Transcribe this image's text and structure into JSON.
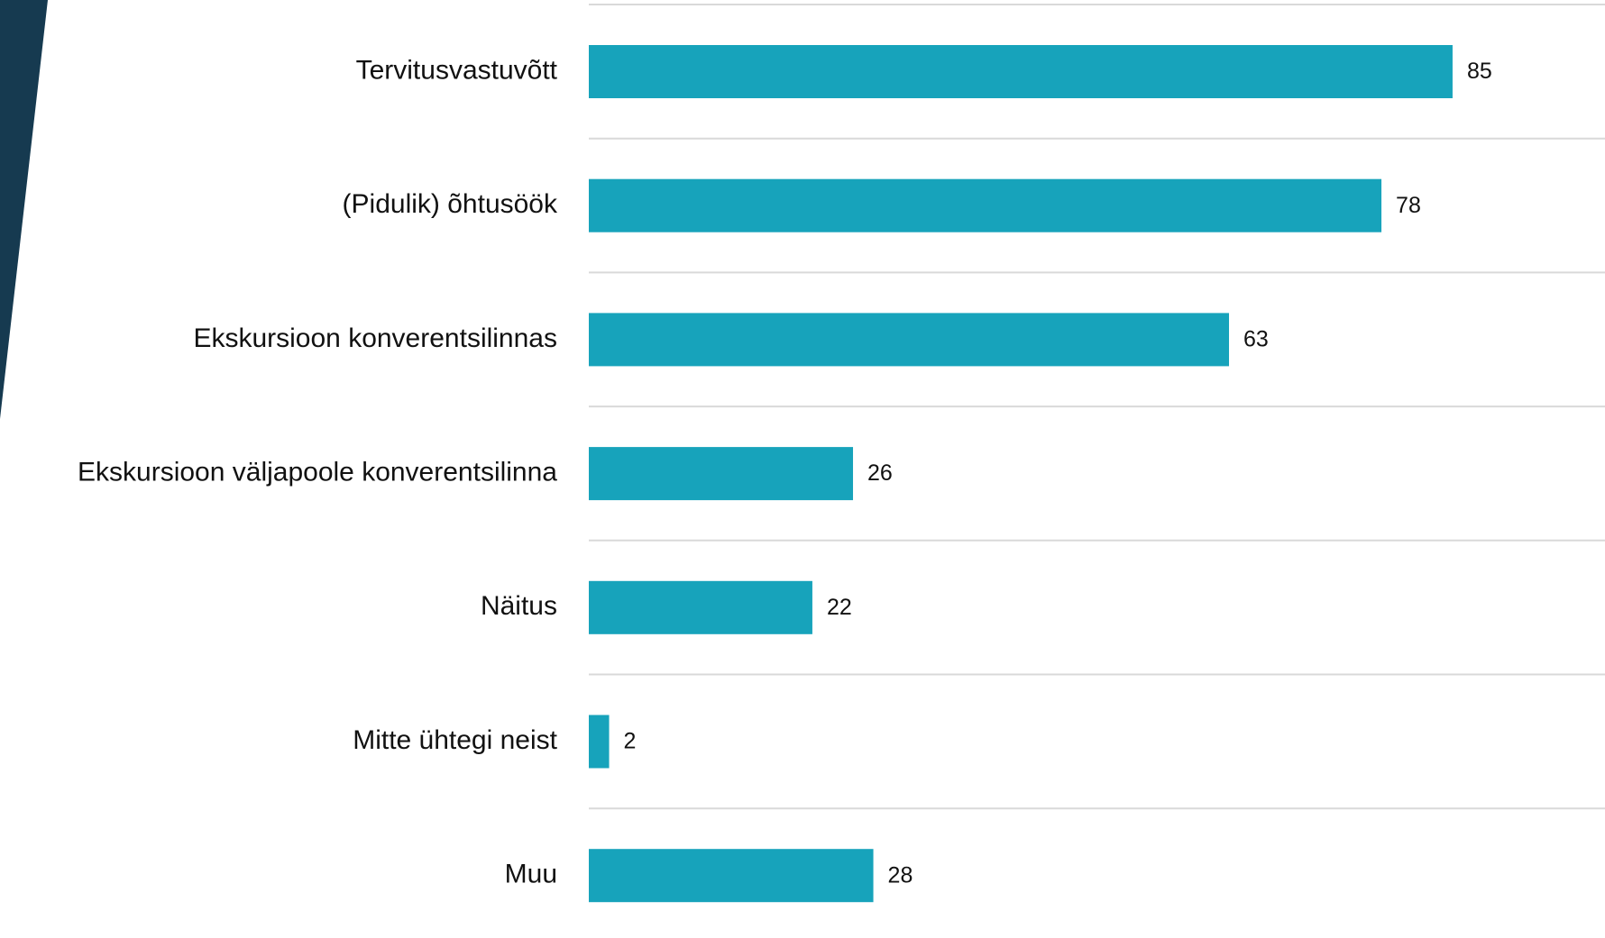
{
  "chart_data": {
    "type": "bar",
    "orientation": "horizontal",
    "categories": [
      "Tervitusvastuvõtt",
      "(Pidulik) õhtusöök",
      "Ekskursioon konverentsilinnas",
      "Ekskursioon väljapoole konverentsilinna",
      "Näitus",
      "Mitte ühtegi neist",
      "Muu"
    ],
    "values": [
      85,
      78,
      63,
      26,
      22,
      2,
      28
    ],
    "color": "#17a3bb",
    "xlim": [
      0,
      100
    ]
  }
}
